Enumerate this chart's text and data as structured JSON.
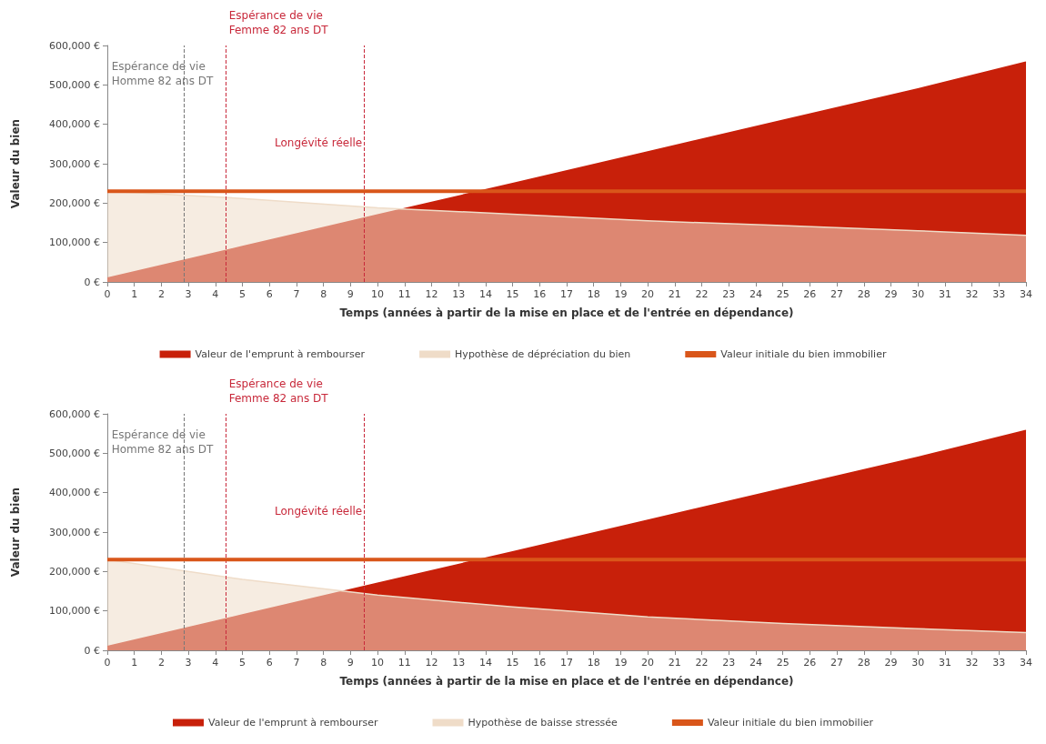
{
  "chart_data": [
    {
      "type": "area",
      "xlabel": "Temps (années à partir de la mise en place et de l'entrée en dépendance)",
      "ylabel": "Valeur du bien",
      "xlim": [
        0,
        34
      ],
      "xticks": [
        0,
        1,
        2,
        3,
        4,
        5,
        6,
        7,
        8,
        9,
        10,
        11,
        12,
        13,
        14,
        15,
        16,
        17,
        18,
        19,
        20,
        21,
        22,
        23,
        24,
        25,
        26,
        27,
        28,
        29,
        30,
        31,
        32,
        33,
        34
      ],
      "ylim": [
        0,
        600000
      ],
      "yticks": [
        {
          "value": 0,
          "label": "0 €"
        },
        {
          "value": 100000,
          "label": "100,000 €"
        },
        {
          "value": 200000,
          "label": "200,000 €"
        },
        {
          "value": 300000,
          "label": "300,000 €"
        },
        {
          "value": 400000,
          "label": "400,000 €"
        },
        {
          "value": 500000,
          "label": "500,000 €"
        },
        {
          "value": 600000,
          "label": "600,000 €"
        }
      ],
      "series": [
        {
          "name": "Valeur de l'emprunt à rembourser",
          "color": "#c8200a",
          "x": [
            0,
            5,
            10,
            15,
            20,
            25,
            30,
            34
          ],
          "values": [
            10000,
            90000,
            170000,
            250000,
            330000,
            410000,
            490000,
            558000
          ]
        },
        {
          "name": "Hypothèse de dépréciation du bien",
          "color": "#efdcc8",
          "x": [
            0,
            5,
            10,
            15,
            20,
            25,
            30,
            34
          ],
          "values": [
            230000,
            212000,
            188000,
            172000,
            155000,
            143000,
            130000,
            118000
          ]
        },
        {
          "name": "Valeur initiale du bien immobilier",
          "type": "line",
          "color": "#d9561a",
          "x": [
            0,
            34
          ],
          "values": [
            230000,
            230000
          ]
        }
      ],
      "ref_lines": [
        {
          "axis": "x",
          "value": 2.85,
          "label": "Espérance de vie\nHomme 82 ans DT",
          "color": "#777777",
          "line_style": "dashed"
        },
        {
          "axis": "x",
          "value": 4.4,
          "label": "Espérance de vie\nFemme 82 ans DT",
          "color": "#c8283a",
          "line_style": "dashed"
        },
        {
          "axis": "x",
          "value": 9.5,
          "label": "Longévité réelle",
          "color": "#c8283a",
          "line_style": "dashed"
        }
      ],
      "marker": "none",
      "grid": false,
      "legend": "bottom"
    },
    {
      "type": "area",
      "xlabel": "Temps (années à partir de la mise en place et de l'entrée en dépendance)",
      "ylabel": "Valeur du bien",
      "xlim": [
        0,
        34
      ],
      "xticks": [
        0,
        1,
        2,
        3,
        4,
        5,
        6,
        7,
        8,
        9,
        10,
        11,
        12,
        13,
        14,
        15,
        16,
        17,
        18,
        19,
        20,
        21,
        22,
        23,
        24,
        25,
        26,
        27,
        28,
        29,
        30,
        31,
        32,
        33,
        34
      ],
      "ylim": [
        0,
        600000
      ],
      "yticks": [
        {
          "value": 0,
          "label": "0 €"
        },
        {
          "value": 100000,
          "label": "100,000 €"
        },
        {
          "value": 200000,
          "label": "200,000 €"
        },
        {
          "value": 300000,
          "label": "300,000 €"
        },
        {
          "value": 400000,
          "label": "400,000 €"
        },
        {
          "value": 500000,
          "label": "500,000 €"
        },
        {
          "value": 600000,
          "label": "600,000 €"
        }
      ],
      "series": [
        {
          "name": "Valeur de l'emprunt à rembourser",
          "color": "#c8200a",
          "x": [
            0,
            5,
            10,
            15,
            20,
            25,
            30,
            34
          ],
          "values": [
            10000,
            90000,
            170000,
            250000,
            330000,
            410000,
            490000,
            558000
          ]
        },
        {
          "name": "Hypothèse de baisse stressée",
          "color": "#efdcc8",
          "x": [
            0,
            5,
            10,
            15,
            20,
            25,
            30,
            34
          ],
          "values": [
            230000,
            180000,
            140000,
            110000,
            85000,
            68000,
            55000,
            45000
          ]
        },
        {
          "name": "Valeur initiale du bien immobilier",
          "type": "line",
          "color": "#d9561a",
          "x": [
            0,
            34
          ],
          "values": [
            230000,
            230000
          ]
        }
      ],
      "ref_lines": [
        {
          "axis": "x",
          "value": 2.85,
          "label": "Espérance de vie\nHomme 82 ans DT",
          "color": "#777777",
          "line_style": "dashed"
        },
        {
          "axis": "x",
          "value": 4.4,
          "label": "Espérance de vie\nFemme 82 ans DT",
          "color": "#c8283a",
          "line_style": "dashed"
        },
        {
          "axis": "x",
          "value": 9.5,
          "label": "Longévité réelle",
          "color": "#c8283a",
          "line_style": "dashed"
        }
      ],
      "marker": "none",
      "grid": false,
      "legend": "bottom"
    }
  ]
}
